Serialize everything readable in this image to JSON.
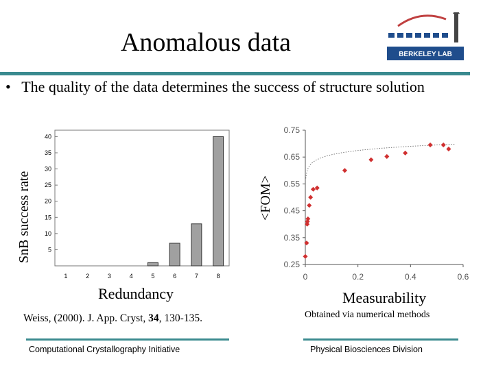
{
  "slide": {
    "title": "Anomalous data",
    "bullet": "The quality of the data determines the success of structure solution",
    "bullet_symbol": "•",
    "citation_prefix": "Weiss, (2000). J. App. Cryst, ",
    "citation_volume": "34",
    "citation_suffix": ", 130-135.",
    "note": "Obtained via numerical methods",
    "footer_left": "Computational Crystallography Initiative",
    "footer_right": "Physical Biosciences Division",
    "logo_text": "BERKELEY LAB",
    "accent_color": "#3a8a8f"
  },
  "chart_data": [
    {
      "type": "bar",
      "ylabel": "SnB success rate",
      "xlabel": "Redundancy",
      "categories": [
        "1",
        "2",
        "3",
        "4",
        "5",
        "6",
        "7",
        "8"
      ],
      "values": [
        0,
        0,
        0,
        0,
        1,
        7,
        13,
        40
      ],
      "ylim": [
        0,
        42
      ],
      "yticks": [
        5,
        10,
        15,
        20,
        25,
        30,
        35,
        40
      ],
      "bar_color": "#a0a0a0"
    },
    {
      "type": "scatter",
      "ylabel": "<FOM>",
      "xlabel": "Measurability",
      "xlim": [
        0,
        0.6
      ],
      "ylim": [
        0.25,
        0.75
      ],
      "xticks": [
        "0",
        "0.2",
        "0.4",
        "0.6"
      ],
      "yticks": [
        "0.25",
        "0.35",
        "0.45",
        "0.55",
        "0.65",
        "0.75"
      ],
      "points": [
        [
          0.0,
          0.28
        ],
        [
          0.005,
          0.33
        ],
        [
          0.007,
          0.4
        ],
        [
          0.008,
          0.41
        ],
        [
          0.01,
          0.42
        ],
        [
          0.015,
          0.47
        ],
        [
          0.02,
          0.5
        ],
        [
          0.03,
          0.53
        ],
        [
          0.045,
          0.535
        ],
        [
          0.15,
          0.6
        ],
        [
          0.25,
          0.64
        ],
        [
          0.31,
          0.652
        ],
        [
          0.38,
          0.665
        ],
        [
          0.475,
          0.695
        ],
        [
          0.525,
          0.695
        ],
        [
          0.545,
          0.68
        ]
      ],
      "marker_color": "#d03030",
      "fit_line": "dotted"
    }
  ]
}
